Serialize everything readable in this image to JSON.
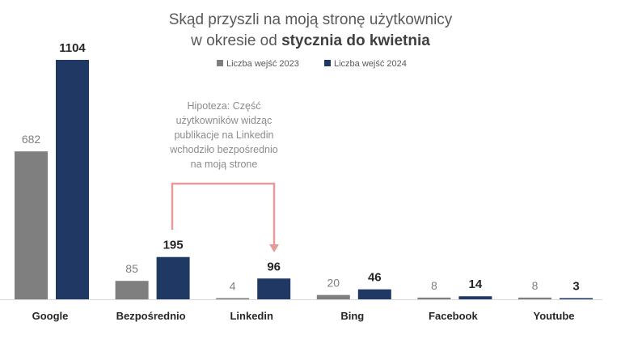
{
  "chart_data": {
    "type": "bar",
    "title_line1": "Skąd przyszli na moją stronę użytkownicy",
    "title_line2_regular": "w okresie od ",
    "title_line2_bold": "stycznia do kwietnia",
    "categories": [
      "Google",
      "Bezpośrednio",
      "Linkedin",
      "Bing",
      "Facebook",
      "Youtube"
    ],
    "series": [
      {
        "name": "Liczba wejść 2023",
        "color": "#7f7f7f",
        "values": [
          682,
          85,
          4,
          20,
          8,
          8
        ]
      },
      {
        "name": "Liczba wejść 2024",
        "color": "#1f3864",
        "values": [
          1104,
          195,
          96,
          46,
          14,
          3
        ]
      }
    ],
    "legend_position": "top",
    "grid": false,
    "ylim": [
      0,
      1104
    ],
    "annotation": {
      "lines": [
        "Hipoteza: Część",
        "użytkowników widząc",
        "publikacje na Linkedin",
        "wchodziło bezpośrednio",
        "na moją strone"
      ],
      "arrow_from": "Bezpośrednio",
      "arrow_to": "Linkedin",
      "color": "#e39b9b"
    }
  }
}
